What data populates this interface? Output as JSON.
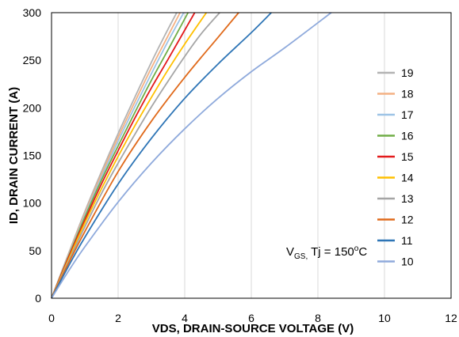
{
  "chart_data": {
    "type": "line",
    "xlabel": "VDS, DRAIN-SOURCE VOLTAGE (V)",
    "ylabel": "ID, DRAIN CURRENT (A)",
    "xlim": [
      0,
      12
    ],
    "ylim": [
      0,
      300
    ],
    "xticks": [
      "0",
      "2",
      "4",
      "6",
      "8",
      "10",
      "12"
    ],
    "yticks": [
      "0",
      "50",
      "100",
      "150",
      "200",
      "250",
      "300"
    ],
    "grid": "vertical",
    "legend_position": "right",
    "annotation": {
      "main": "V",
      "sub": "GS,",
      "mid": " Tj = 150",
      "sup": "o",
      "tail": "C"
    },
    "series": [
      {
        "name": "19",
        "color": "#b3b3b3",
        "x": [
          0,
          0.5,
          1.0,
          1.5,
          2.0,
          2.5,
          3.0,
          3.4,
          3.76
        ],
        "y": [
          0,
          46,
          91,
          133,
          173,
          211,
          248,
          276,
          300
        ]
      },
      {
        "name": "18",
        "color": "#f4b183",
        "x": [
          0,
          0.5,
          1.0,
          1.5,
          2.0,
          2.5,
          3.0,
          3.4,
          3.86
        ],
        "y": [
          0,
          45,
          89,
          130,
          169,
          206,
          242,
          269,
          300
        ]
      },
      {
        "name": "17",
        "color": "#9dc3e6",
        "x": [
          0,
          0.5,
          1.0,
          1.5,
          2.0,
          2.5,
          3.0,
          3.5,
          3.97
        ],
        "y": [
          0,
          44,
          87,
          127,
          165,
          201,
          236,
          270,
          300
        ]
      },
      {
        "name": "16",
        "color": "#70ad47",
        "x": [
          0,
          0.5,
          1.0,
          1.5,
          2.0,
          2.5,
          3.0,
          3.5,
          4.1
        ],
        "y": [
          0,
          43,
          85,
          124,
          160,
          195,
          229,
          261,
          300
        ]
      },
      {
        "name": "15",
        "color": "#e31a1c",
        "x": [
          0,
          0.5,
          1.0,
          1.5,
          2.0,
          2.5,
          3.0,
          3.5,
          4.3
        ],
        "y": [
          0,
          42,
          82,
          120,
          155,
          189,
          221,
          251,
          300
        ]
      },
      {
        "name": "14",
        "color": "#ffc000",
        "x": [
          0,
          0.5,
          1.0,
          1.5,
          2.0,
          2.5,
          3.0,
          3.5,
          4.0,
          4.65
        ],
        "y": [
          0,
          40,
          79,
          115,
          149,
          181,
          211,
          240,
          267,
          300
        ]
      },
      {
        "name": "13",
        "color": "#a5a5a5",
        "x": [
          0,
          0.5,
          1.0,
          1.5,
          2.0,
          2.5,
          3.0,
          3.5,
          4.0,
          4.5,
          5.05
        ],
        "y": [
          0,
          38,
          75,
          110,
          142,
          172,
          201,
          228,
          254,
          278,
          300
        ]
      },
      {
        "name": "12",
        "color": "#e06a1b",
        "x": [
          0,
          0.5,
          1.0,
          2.0,
          3.0,
          4.0,
          5.0,
          5.62
        ],
        "y": [
          0,
          36,
          70,
          133,
          186,
          232,
          274,
          300
        ]
      },
      {
        "name": "11",
        "color": "#2e75b6",
        "x": [
          0,
          0.5,
          1.0,
          2.0,
          3.0,
          4.0,
          5.0,
          6.0,
          6.6
        ],
        "y": [
          0,
          33,
          64,
          120,
          168,
          210,
          246,
          279,
          300
        ]
      },
      {
        "name": "10",
        "color": "#8faadc",
        "x": [
          0,
          0.5,
          1.0,
          2.0,
          3.0,
          4.0,
          5.0,
          6.0,
          7.0,
          8.4
        ],
        "y": [
          0,
          28,
          54,
          101,
          142,
          178,
          210,
          238,
          263,
          300
        ]
      }
    ]
  }
}
